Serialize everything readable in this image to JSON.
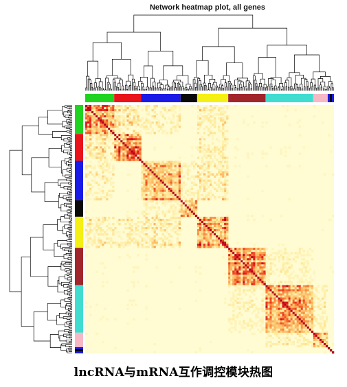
{
  "chart_data": {
    "type": "heatmap",
    "title": "Network heatmap plot, all genes",
    "caption": "lncRNA与mRNA互作调控模块热图",
    "modules": [
      {
        "color": "#21d321",
        "weight": 0.12
      },
      {
        "color": "#e8141a",
        "weight": 0.1
      },
      {
        "color": "#1a1ae6",
        "weight": 0.16
      },
      {
        "color": "#0a0a0a",
        "weight": 0.07
      },
      {
        "color": "#f5f013",
        "weight": 0.12
      },
      {
        "color": "#a1262c",
        "weight": 0.15
      },
      {
        "color": "#41dcd0",
        "weight": 0.19
      },
      {
        "color": "#f7b8c6",
        "weight": 0.06
      },
      {
        "color": "#1a1ae6",
        "weight": 0.008
      },
      {
        "color": "#000000",
        "weight": 0.008
      },
      {
        "color": "#1a1ae6",
        "weight": 0.008
      }
    ],
    "colormap": [
      "#fffbd2",
      "#fdea9a",
      "#fbb761",
      "#f5672c",
      "#e21a1c",
      "#b00020"
    ],
    "dendrogram": true,
    "legend": "none"
  }
}
